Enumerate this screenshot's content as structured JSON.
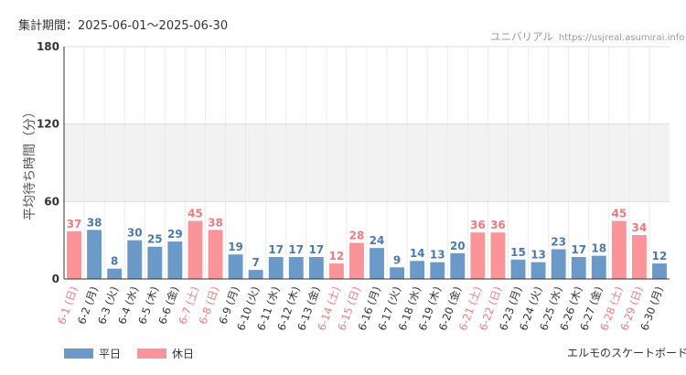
{
  "header": {
    "period": "集計期間：2025-06-01～2025-06-30",
    "brand_name": "ユニバリアル",
    "brand_url": "https://usjreal.asumirai.info"
  },
  "footer": {
    "attraction": "エルモのスケートボード"
  },
  "colors": {
    "weekday": "#6b9ac8",
    "holiday": "#fb9498",
    "holiday_text": "#f07a80",
    "weekday_text": "#4a7ab0"
  },
  "chart_data": {
    "type": "bar",
    "ylabel": "平均待ち時間（分）",
    "ylim": [
      0,
      180
    ],
    "yticks": [
      0,
      60,
      120,
      180
    ],
    "shaded_band": [
      60,
      120
    ],
    "legend_position": "bottom-left",
    "series": [
      {
        "name": "平日",
        "color": "#6b9ac8"
      },
      {
        "name": "休日",
        "color": "#fb9498"
      }
    ],
    "categories": [
      "6-1 (日)",
      "6-2 (月)",
      "6-3 (火)",
      "6-4 (水)",
      "6-5 (木)",
      "6-6 (金)",
      "6-7 (土)",
      "6-8 (日)",
      "6-9 (月)",
      "6-10 (火)",
      "6-11 (水)",
      "6-12 (木)",
      "6-13 (金)",
      "6-14 (土)",
      "6-15 (日)",
      "6-16 (月)",
      "6-17 (火)",
      "6-18 (水)",
      "6-19 (木)",
      "6-20 (金)",
      "6-21 (土)",
      "6-22 (日)",
      "6-23 (月)",
      "6-24 (火)",
      "6-25 (水)",
      "6-26 (木)",
      "6-27 (金)",
      "6-28 (土)",
      "6-29 (日)",
      "6-30 (月)"
    ],
    "values": [
      37,
      38,
      8,
      30,
      25,
      29,
      45,
      38,
      19,
      7,
      17,
      17,
      17,
      12,
      28,
      24,
      9,
      14,
      13,
      20,
      36,
      36,
      15,
      13,
      23,
      17,
      18,
      45,
      34,
      12
    ],
    "day_type": [
      "休日",
      "平日",
      "平日",
      "平日",
      "平日",
      "平日",
      "休日",
      "休日",
      "平日",
      "平日",
      "平日",
      "平日",
      "平日",
      "休日",
      "休日",
      "平日",
      "平日",
      "平日",
      "平日",
      "平日",
      "休日",
      "休日",
      "平日",
      "平日",
      "平日",
      "平日",
      "平日",
      "休日",
      "休日",
      "平日"
    ]
  }
}
